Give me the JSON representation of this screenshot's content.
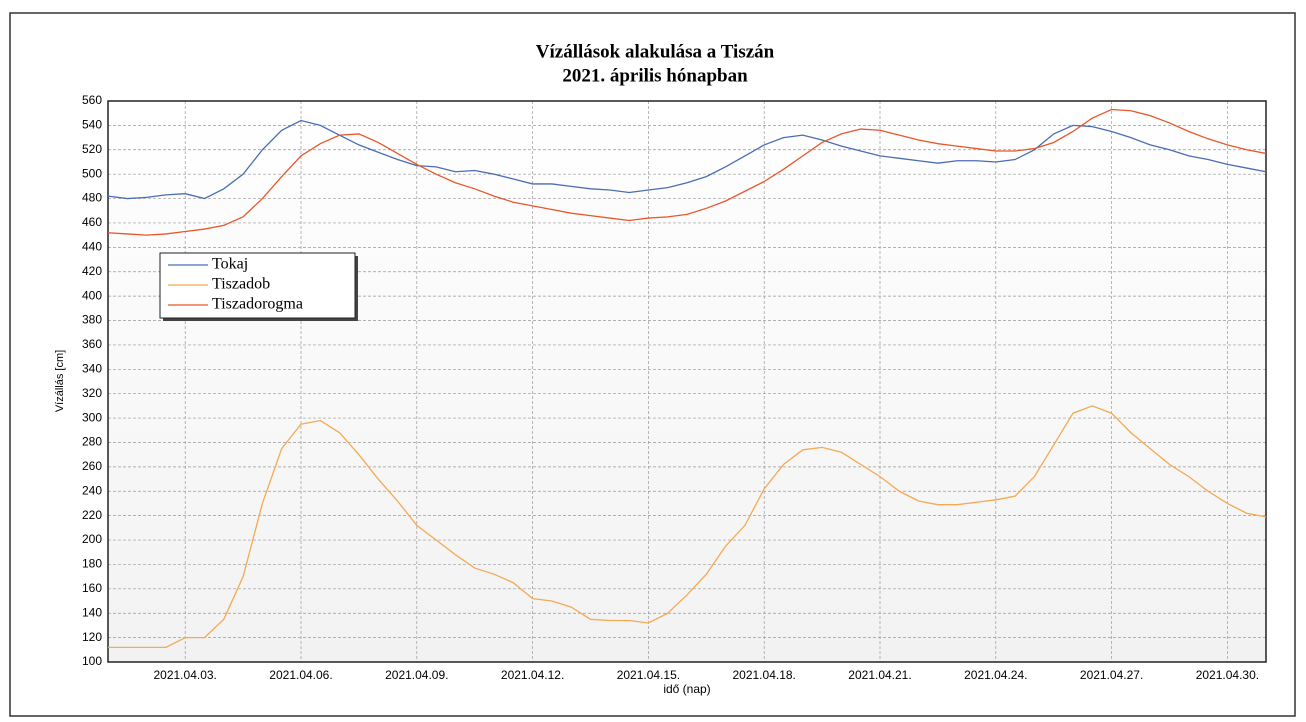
{
  "chart_data": {
    "type": "line",
    "title": "Vízállások alakulása a Tiszán",
    "subtitle": "2021. április hónapban",
    "x_label": "idő (nap)",
    "y_label": "Vízállás [cm]",
    "x": [
      1,
      1.5,
      2,
      2.5,
      3,
      3.5,
      4,
      4.5,
      5,
      5.5,
      6,
      6.5,
      7,
      7.5,
      8,
      8.5,
      9,
      9.5,
      10,
      10.5,
      11,
      11.5,
      12,
      12.5,
      13,
      13.5,
      14,
      14.5,
      15,
      15.5,
      16,
      16.5,
      17,
      17.5,
      18,
      18.5,
      19,
      19.5,
      20,
      20.5,
      21,
      21.5,
      22,
      22.5,
      23,
      23.5,
      24,
      24.5,
      25,
      25.5,
      26,
      26.5,
      27,
      27.5,
      28,
      28.5,
      29,
      29.5,
      30,
      30.5,
      31
    ],
    "series": [
      {
        "name": "Tokaj",
        "color": "#4a6db3",
        "values": [
          482,
          480,
          481,
          483,
          484,
          480,
          488,
          500,
          520,
          536,
          544,
          540,
          532,
          524,
          518,
          512,
          507,
          506,
          502,
          503,
          500,
          496,
          492,
          492,
          490,
          488,
          487,
          485,
          487,
          489,
          493,
          498,
          506,
          515,
          524,
          530,
          532,
          528,
          523,
          519,
          515,
          513,
          511,
          509,
          511,
          511,
          510,
          512,
          520,
          533,
          540,
          539,
          535,
          530,
          524,
          520,
          515,
          512,
          508,
          505,
          502
        ]
      },
      {
        "name": "Tiszadob",
        "color": "#f5a953",
        "values": [
          112,
          112,
          112,
          112,
          120,
          120,
          135,
          170,
          230,
          275,
          295,
          298,
          288,
          270,
          250,
          232,
          212,
          200,
          188,
          177,
          172,
          165,
          152,
          150,
          145,
          135,
          134,
          134,
          132,
          140,
          155,
          172,
          195,
          212,
          242,
          262,
          274,
          276,
          272,
          262,
          252,
          240,
          232,
          229,
          229,
          231,
          233,
          236,
          252,
          278,
          304,
          310,
          304,
          288,
          275,
          262,
          252,
          240,
          230,
          222,
          219
        ]
      },
      {
        "name": "Tiszadorogma",
        "color": "#e8572a",
        "values": [
          452,
          451,
          450,
          451,
          453,
          455,
          458,
          465,
          480,
          498,
          515,
          525,
          532,
          533,
          526,
          517,
          508,
          500,
          493,
          488,
          482,
          477,
          474,
          471,
          468,
          466,
          464,
          462,
          464,
          465,
          467,
          472,
          478,
          486,
          494,
          504,
          515,
          526,
          533,
          537,
          536,
          532,
          528,
          525,
          523,
          521,
          519,
          519,
          521,
          526,
          535,
          546,
          553,
          552,
          548,
          542,
          535,
          529,
          524,
          520,
          517
        ]
      }
    ],
    "xlim": [
      1,
      31
    ],
    "xticks": [
      {
        "value": 3,
        "label": "2021.04.03."
      },
      {
        "value": 6,
        "label": "2021.04.06."
      },
      {
        "value": 9,
        "label": "2021.04.09."
      },
      {
        "value": 12,
        "label": "2021.04.12."
      },
      {
        "value": 15,
        "label": "2021.04.15."
      },
      {
        "value": 18,
        "label": "2021.04.18."
      },
      {
        "value": 21,
        "label": "2021.04.21."
      },
      {
        "value": 24,
        "label": "2021.04.24."
      },
      {
        "value": 27,
        "label": "2021.04.27."
      },
      {
        "value": 30,
        "label": "2021.04.30."
      }
    ],
    "ylim": [
      100,
      560
    ],
    "yticks": [
      100,
      120,
      140,
      160,
      180,
      200,
      220,
      240,
      260,
      280,
      300,
      320,
      340,
      360,
      380,
      400,
      420,
      440,
      460,
      480,
      500,
      520,
      540,
      560
    ],
    "grid": true,
    "legend": "upper-left"
  }
}
